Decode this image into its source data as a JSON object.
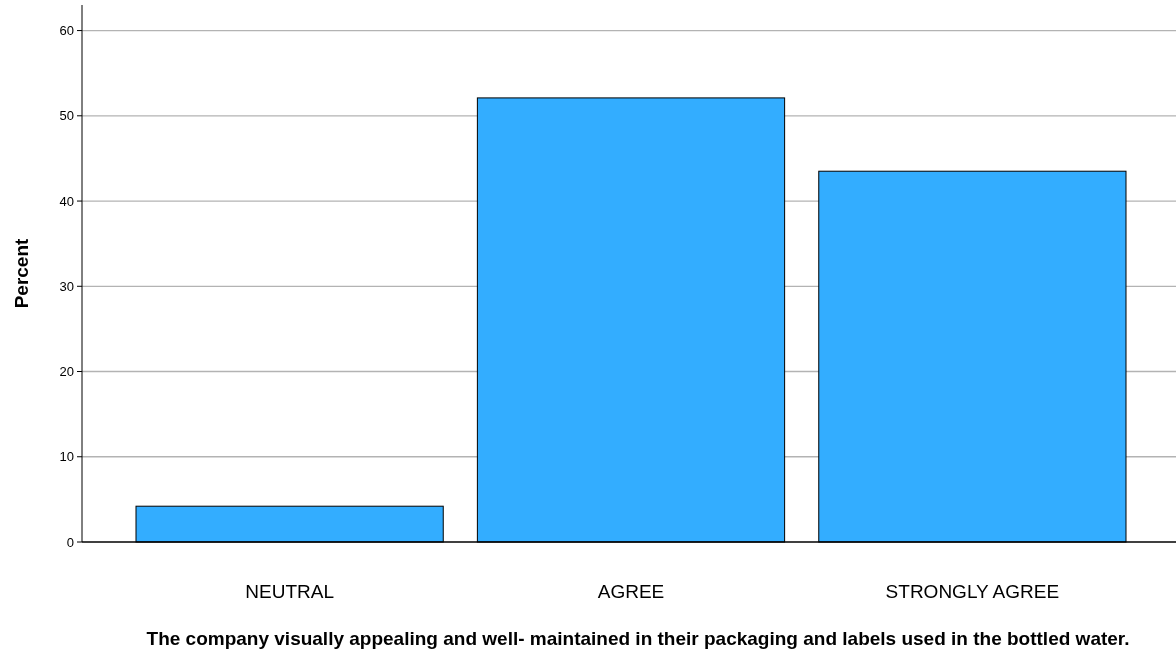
{
  "chart_data": {
    "type": "bar",
    "xlabel": "The company visually appealing and well- maintained in their packaging and labels used in the bottled water.",
    "ylabel": "Percent",
    "categories": [
      "NEUTRAL",
      "AGREE",
      "STRONGLY AGREE"
    ],
    "values": [
      4.2,
      52.1,
      43.5
    ],
    "color": "#33adff",
    "ylim": [
      0,
      63
    ],
    "yticks": [
      0,
      10,
      20,
      30,
      40,
      50,
      60
    ],
    "grid": "y"
  }
}
